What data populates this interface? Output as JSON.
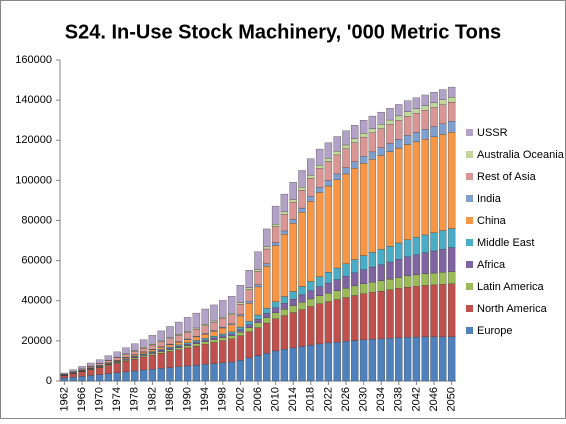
{
  "chart_data": {
    "type": "stacked-bar",
    "title": "S24. In-Use Stock Machinery, '000 Metric Tons",
    "x": [
      1962,
      1964,
      1966,
      1968,
      1970,
      1972,
      1974,
      1976,
      1978,
      1980,
      1982,
      1984,
      1986,
      1988,
      1990,
      1992,
      1994,
      1996,
      1998,
      2000,
      2002,
      2004,
      2006,
      2008,
      2010,
      2012,
      2014,
      2016,
      2018,
      2020,
      2022,
      2024,
      2026,
      2028,
      2030,
      2032,
      2034,
      2036,
      2038,
      2040,
      2042,
      2044,
      2046,
      2048,
      2050
    ],
    "xlim": [
      1961,
      2051
    ],
    "xticks": [
      1962,
      1966,
      1970,
      1974,
      1978,
      1982,
      1986,
      1990,
      1994,
      1998,
      2002,
      2006,
      2010,
      2014,
      2018,
      2022,
      2026,
      2030,
      2034,
      2038,
      2042,
      2046,
      2050
    ],
    "ylim": [
      0,
      160000
    ],
    "yticks": [
      0,
      20000,
      40000,
      60000,
      80000,
      100000,
      120000,
      140000,
      160000
    ],
    "grid": false,
    "legend": "right",
    "series": [
      {
        "name": "Europe",
        "color": "#4F81BD",
        "values": [
          1500,
          1900,
          2300,
          2800,
          3200,
          3700,
          4100,
          4600,
          5000,
          5500,
          5900,
          6300,
          6700,
          7100,
          7500,
          7900,
          8300,
          8700,
          9100,
          9500,
          10400,
          11500,
          12700,
          13900,
          15000,
          15800,
          16500,
          17200,
          17900,
          18500,
          19000,
          19400,
          19800,
          20200,
          20500,
          20800,
          21000,
          21300,
          21600,
          21800,
          21900,
          22000,
          22000,
          22000,
          22000
        ]
      },
      {
        "name": "North America",
        "color": "#C0504D",
        "values": [
          1200,
          1750,
          2300,
          2850,
          3400,
          4000,
          4600,
          5200,
          5900,
          6500,
          7000,
          7500,
          8000,
          8500,
          9000,
          9500,
          10000,
          10500,
          11000,
          11500,
          12200,
          13000,
          13900,
          15000,
          16000,
          16800,
          17600,
          18400,
          19200,
          20000,
          20600,
          21200,
          21800,
          22400,
          23000,
          23400,
          23800,
          24200,
          24600,
          25000,
          25300,
          25600,
          25900,
          26200,
          26500
        ]
      },
      {
        "name": "Latin America",
        "color": "#9BBB59",
        "values": [
          100,
          150,
          200,
          250,
          300,
          380,
          460,
          540,
          620,
          700,
          780,
          860,
          940,
          1020,
          1100,
          1180,
          1260,
          1340,
          1420,
          1500,
          1800,
          2100,
          2400,
          2700,
          3000,
          3200,
          3400,
          3600,
          3800,
          4000,
          4200,
          4400,
          4600,
          4800,
          5000,
          5100,
          5200,
          5300,
          5400,
          5600,
          5700,
          5800,
          5900,
          6000,
          6000
        ]
      },
      {
        "name": "Africa",
        "color": "#8064A2",
        "values": [
          100,
          140,
          180,
          210,
          250,
          300,
          350,
          400,
          450,
          500,
          560,
          620,
          680,
          740,
          800,
          840,
          880,
          920,
          960,
          1000,
          1200,
          1500,
          1800,
          2100,
          2500,
          2900,
          3300,
          3700,
          4100,
          4500,
          5000,
          5500,
          6000,
          6500,
          7000,
          7500,
          8000,
          8500,
          9000,
          9500,
          10000,
          10500,
          11000,
          11500,
          12000
        ]
      },
      {
        "name": "Middle East",
        "color": "#4BACC6",
        "values": [
          50,
          75,
          100,
          125,
          150,
          200,
          250,
          300,
          350,
          400,
          460,
          520,
          580,
          640,
          700,
          760,
          820,
          880,
          940,
          1000,
          1300,
          1700,
          2100,
          2500,
          3000,
          3400,
          3800,
          4200,
          4600,
          5000,
          5400,
          5800,
          6200,
          6600,
          7000,
          7300,
          7600,
          7900,
          8200,
          8500,
          8700,
          8900,
          9100,
          9300,
          9500
        ]
      },
      {
        "name": "China",
        "color": "#F79646",
        "values": [
          100,
          150,
          200,
          250,
          300,
          380,
          460,
          540,
          620,
          700,
          860,
          1020,
          1180,
          1340,
          1500,
          1800,
          2100,
          2500,
          3000,
          3500,
          5500,
          9000,
          14000,
          21000,
          28000,
          31000,
          34000,
          37000,
          40000,
          42000,
          43000,
          44000,
          44800,
          45500,
          46000,
          46400,
          46800,
          47100,
          47300,
          47500,
          47600,
          47700,
          47800,
          47900,
          48000
        ]
      },
      {
        "name": "India",
        "color": "#7F9FCF",
        "values": [
          50,
          75,
          100,
          125,
          150,
          170,
          190,
          210,
          230,
          250,
          270,
          290,
          310,
          330,
          350,
          380,
          410,
          440,
          470,
          500,
          700,
          900,
          1100,
          1300,
          1500,
          1700,
          1900,
          2100,
          2300,
          2500,
          2700,
          2900,
          3100,
          3300,
          3500,
          3700,
          3900,
          4100,
          4300,
          4500,
          4700,
          4900,
          5100,
          5300,
          5500
        ]
      },
      {
        "name": "Rest of Asia",
        "color": "#D99694",
        "values": [
          200,
          350,
          500,
          650,
          800,
          1000,
          1200,
          1400,
          1600,
          1800,
          2100,
          2400,
          2700,
          3000,
          3200,
          3500,
          3800,
          4000,
          4300,
          4500,
          5200,
          5900,
          6600,
          7300,
          8000,
          8300,
          8600,
          8900,
          9200,
          9500,
          9500,
          9500,
          9500,
          9500,
          9500,
          9500,
          9500,
          9500,
          9500,
          9500,
          9500,
          9500,
          9500,
          9500,
          9500
        ]
      },
      {
        "name": "Australia Oceania",
        "color": "#C3D69B",
        "values": [
          100,
          140,
          170,
          210,
          250,
          280,
          310,
          340,
          370,
          400,
          430,
          460,
          490,
          520,
          550,
          580,
          610,
          640,
          670,
          700,
          800,
          900,
          1000,
          1100,
          1200,
          1280,
          1360,
          1440,
          1520,
          1600,
          1680,
          1760,
          1840,
          1920,
          2000,
          2060,
          2120,
          2180,
          2240,
          2300,
          2340,
          2380,
          2420,
          2460,
          2500
        ]
      },
      {
        "name": "USSR",
        "color": "#B3A2C7",
        "values": [
          600,
          900,
          1200,
          1500,
          1800,
          2200,
          2600,
          3000,
          3400,
          3800,
          4400,
          5000,
          5600,
          6200,
          7000,
          7400,
          7700,
          8000,
          8300,
          8500,
          8600,
          8700,
          8800,
          8900,
          9000,
          8800,
          8600,
          8400,
          8200,
          8000,
          7700,
          7400,
          7100,
          6800,
          6500,
          6300,
          6100,
          5900,
          5700,
          5500,
          5400,
          5300,
          5200,
          5100,
          5000
        ]
      }
    ]
  }
}
